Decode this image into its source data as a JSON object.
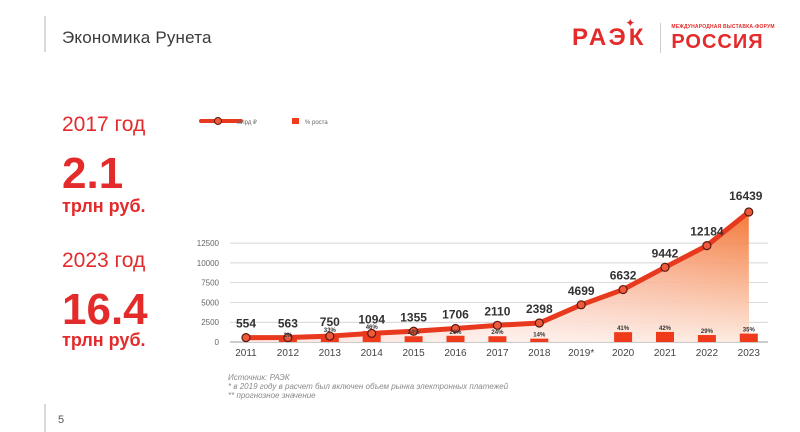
{
  "header": {
    "title": "Экономика Рунета",
    "brand_raek": "РАЭК",
    "brand_forum_caption": "Международная выставка-форум",
    "brand_russia": "РОССИЯ"
  },
  "stats": [
    {
      "year": "2017 год",
      "value": "2.1",
      "unit": "трлн руб."
    },
    {
      "year": "2023 год",
      "value": "16.4",
      "unit": "трлн руб."
    }
  ],
  "footnote": {
    "source": "Источник: РАЭК",
    "note1": "* в 2019 году в расчет был включен объем рынка электронных платежей",
    "note2": "** прогнозное значение"
  },
  "page_number": "5",
  "colors": {
    "accent": "#e32b2b",
    "line": "#e8391e",
    "area_top": "#f36b24",
    "bar": "#ef3a1c"
  },
  "chart_data": {
    "type": "line",
    "categories": [
      "2011",
      "2012",
      "2013",
      "2014",
      "2015",
      "2016",
      "2017",
      "2018",
      "2019*",
      "2020",
      "2021",
      "2022",
      "2023"
    ],
    "series": [
      {
        "name": "млрд ₽",
        "type": "line+area",
        "values": [
          554,
          563,
          750,
          1094,
          1355,
          1706,
          2110,
          2398,
          4699,
          6632,
          9442,
          12184,
          16439
        ]
      },
      {
        "name": "% роста",
        "type": "bar",
        "values": [
          null,
          2,
          33,
          46,
          24,
          26,
          24,
          14,
          null,
          41,
          42,
          29,
          35
        ],
        "labels": [
          "",
          "2%",
          "33%",
          "46%",
          "24%",
          "26%",
          "24%",
          "14%",
          "",
          "41%",
          "42%",
          "29%",
          "35%"
        ]
      }
    ],
    "value_labels": [
      "554",
      "563",
      "750",
      "1094",
      "1355",
      "1706",
      "2110",
      "2398",
      "4699",
      "6632",
      "9442",
      "12184",
      "16439"
    ],
    "y_ticks": [
      "0",
      "2500",
      "5000",
      "7500",
      "10000",
      "12500"
    ],
    "ylim": [
      0,
      12500
    ],
    "grid": true,
    "legend": "top-left"
  }
}
